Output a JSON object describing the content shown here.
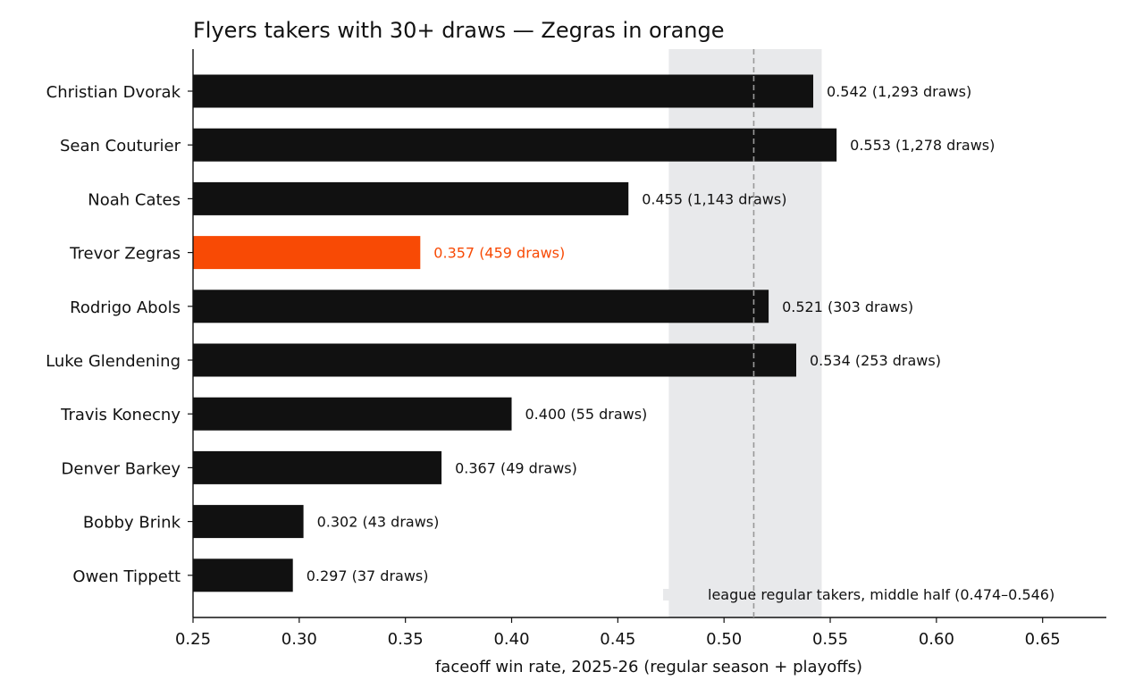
{
  "chart_data": {
    "type": "bar",
    "orientation": "horizontal",
    "title": "Flyers takers with 30+ draws — Zegras in orange",
    "xlabel": "faceoff win rate, 2025-26 (regular season + playoffs)",
    "ylabel": "",
    "xlim": [
      0.25,
      0.68
    ],
    "xticks": [
      "0.25",
      "0.30",
      "0.35",
      "0.40",
      "0.45",
      "0.50",
      "0.55",
      "0.60",
      "0.65"
    ],
    "categories": [
      "Christian Dvorak",
      "Sean Couturier",
      "Noah Cates",
      "Trevor Zegras",
      "Rodrigo Abols",
      "Luke Glendening",
      "Travis Konecny",
      "Denver Barkey",
      "Bobby Brink",
      "Owen Tippett"
    ],
    "values": [
      0.542,
      0.553,
      0.455,
      0.357,
      0.521,
      0.534,
      0.4,
      0.367,
      0.302,
      0.297
    ],
    "draws": [
      1293,
      1278,
      1143,
      459,
      303,
      253,
      55,
      49,
      43,
      37
    ],
    "value_labels": [
      "0.542  (1,293 draws)",
      "0.553  (1,278 draws)",
      "0.455  (1,143 draws)",
      "0.357  (459 draws)",
      "0.521  (303 draws)",
      "0.534  (253 draws)",
      "0.400  (55 draws)",
      "0.367  (49 draws)",
      "0.302  (43 draws)",
      "0.297  (37 draws)"
    ],
    "highlight": "Trevor Zegras",
    "band": {
      "low": 0.474,
      "high": 0.546,
      "label": "league regular takers, middle half (0.474–0.546)"
    },
    "reference_line": 0.514,
    "legend_position": "bottom-right",
    "grid": false,
    "colors": {
      "bar": "#111111",
      "highlight": "#f84a05",
      "band": "#e8e9eb",
      "reference_line": "#999999"
    }
  }
}
